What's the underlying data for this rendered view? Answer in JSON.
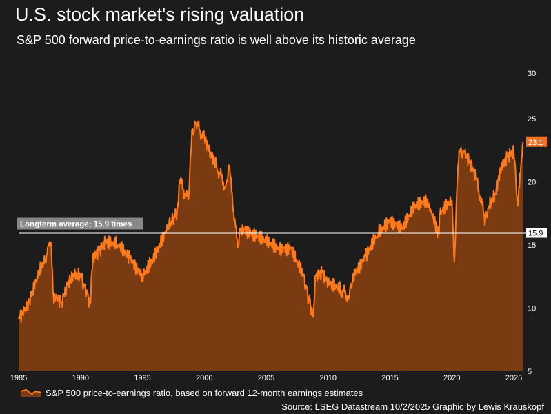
{
  "chart_data": {
    "type": "area",
    "title": "U.S. stock market's rising valuation",
    "subtitle": "S&P 500 forward price-to-earnings ratio is well above its historic average",
    "xlim": [
      1985,
      2025.8
    ],
    "ylim": [
      5,
      30
    ],
    "x_ticks": [
      "1985",
      "1990",
      "1995",
      "2000",
      "2005",
      "2010",
      "2015",
      "2020",
      "2025"
    ],
    "y_ticks": [
      "5",
      "10",
      "15",
      "20",
      "25",
      "30"
    ],
    "y_axis_side": "right",
    "grid": false,
    "series": [
      {
        "name": "S&P 500 price-to-earnings ratio, based on forward 12-month earnings estimates",
        "color": "#ff7a1a",
        "fill": "#7a3a12",
        "x": [
          1985,
          1985.5,
          1986,
          1986.5,
          1987,
          1987.6,
          1987.85,
          1988,
          1988.5,
          1989,
          1989.5,
          1990,
          1990.8,
          1991,
          1991.5,
          1992,
          1993,
          1994,
          1995,
          1996,
          1997,
          1997.8,
          1998,
          1998.7,
          1999,
          1999.3,
          2000,
          2000.5,
          2001,
          2001.7,
          2002,
          2002.7,
          2003,
          2004,
          2005,
          2006,
          2007,
          2008,
          2008.8,
          2009,
          2009.5,
          2010,
          2011,
          2011.7,
          2012,
          2013,
          2014,
          2015,
          2016,
          2017,
          2018,
          2018.95,
          2019,
          2020,
          2020.2,
          2020.5,
          2020.7,
          2021,
          2021.5,
          2022,
          2022.7,
          2023,
          2023.5,
          2024,
          2024.5,
          2025,
          2025.3,
          2025.75
        ],
        "values": [
          9.2,
          9.8,
          10.8,
          12.5,
          13.5,
          15.2,
          10.3,
          10.8,
          10.5,
          12,
          12.5,
          12.5,
          10.3,
          14,
          14.5,
          15.2,
          15,
          13.9,
          12.5,
          14,
          16.3,
          17.5,
          20.1,
          18.5,
          24,
          24.6,
          23.4,
          22.3,
          21.2,
          19.5,
          21.2,
          14.7,
          16.3,
          15.8,
          15.2,
          14.7,
          14.7,
          12.5,
          9.2,
          12.5,
          12.8,
          12,
          11.4,
          10.8,
          12.5,
          14,
          15.8,
          16.9,
          16.3,
          18,
          18.5,
          15.8,
          17.4,
          18.5,
          13.6,
          21.2,
          22.6,
          22.3,
          21.5,
          20.1,
          16.9,
          18,
          19,
          21.2,
          22,
          22.3,
          18,
          23.1
        ]
      }
    ],
    "reference_line": {
      "value": 15.9,
      "label": "Longterm average: 15.9 times",
      "value_label": "15.9",
      "color": "#ffffff"
    },
    "last_value_label": "23.1",
    "legend": "bottom-left",
    "source": "Source: LSEG Datastream 10/2/2025 Graphic by Lewis Krauskopf"
  }
}
